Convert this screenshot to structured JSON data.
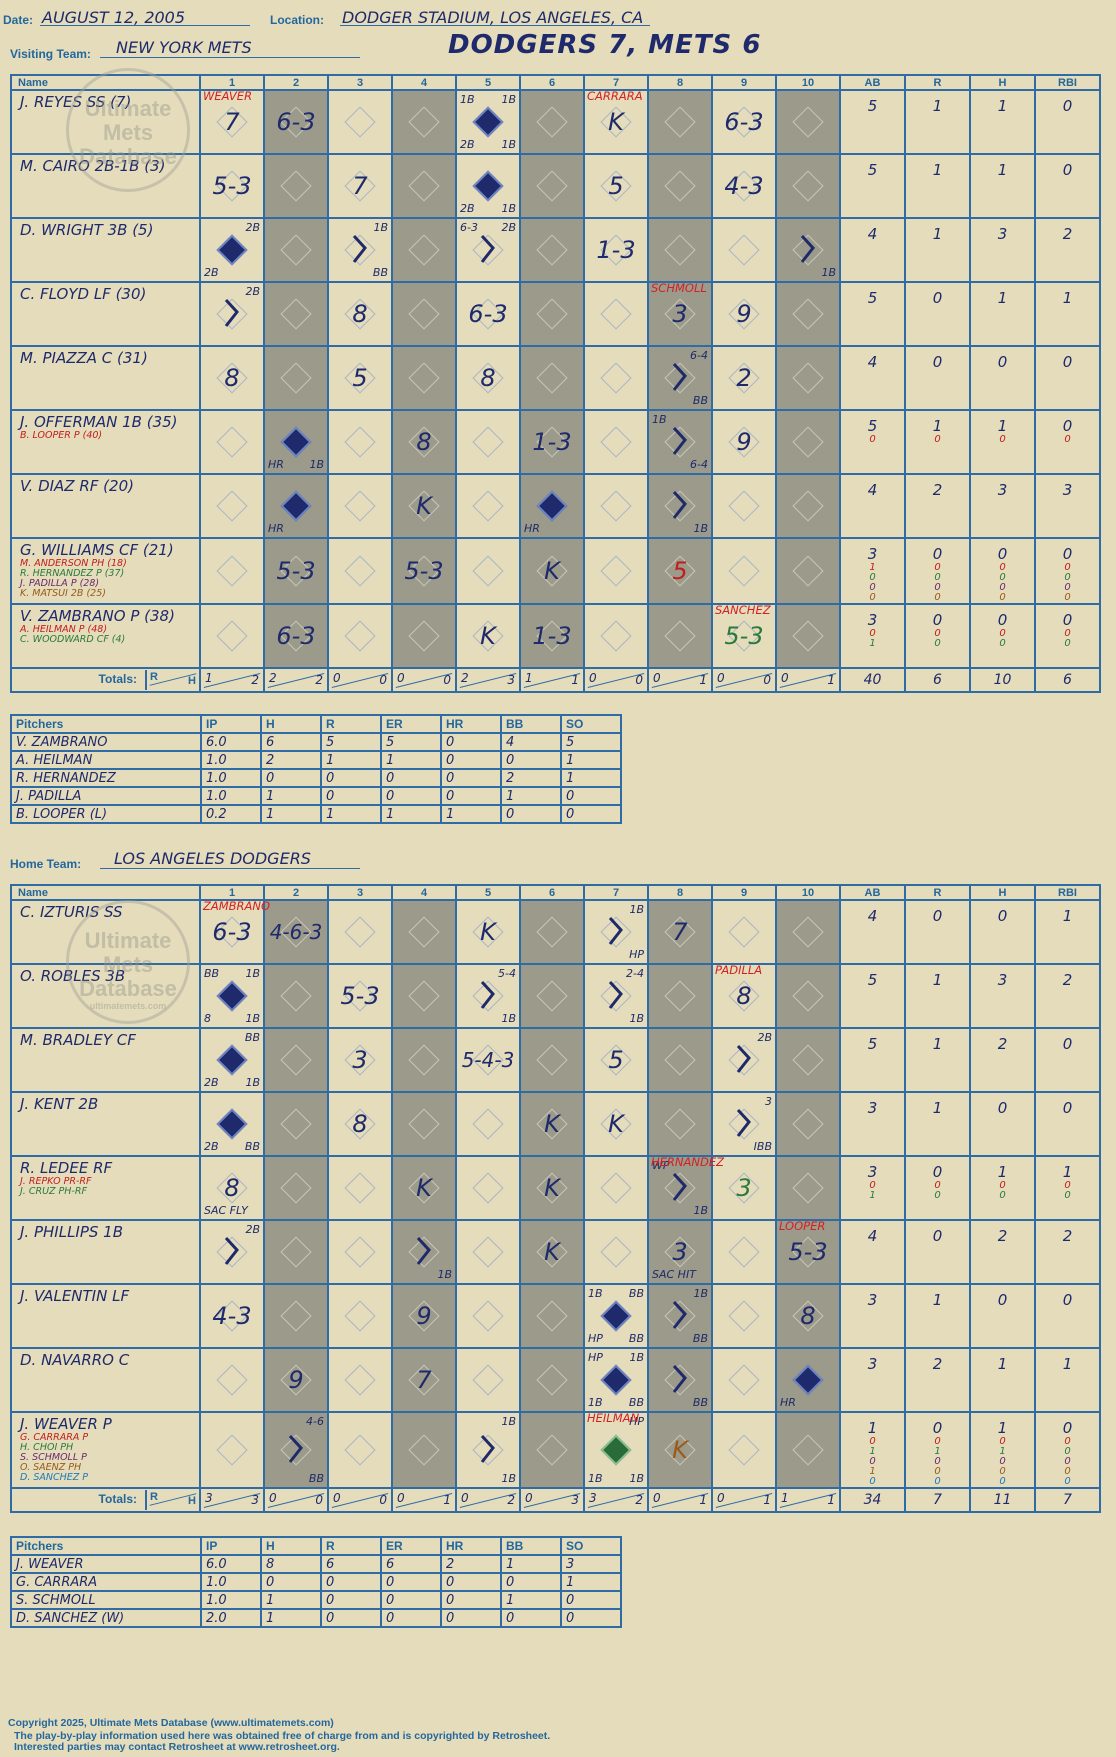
{
  "header": {
    "date_label": "Date:",
    "date": "AUGUST 12, 2005",
    "location_label": "Location:",
    "location": "DODGER STADIUM, LOS ANGELES, CA",
    "visiting_label": "Visiting Team:",
    "visiting_team": "NEW YORK METS",
    "home_label": "Home Team:",
    "home_team": "LOS ANGELES DODGERS",
    "title": "DODGERS 7, METS 6"
  },
  "watermark": {
    "line1": "Ultimate",
    "line2": "Mets",
    "line3": "Database",
    "url": "ultimatemets.com"
  },
  "columns": {
    "name": "Name",
    "innings": [
      "1",
      "2",
      "3",
      "4",
      "5",
      "6",
      "7",
      "8",
      "9",
      "10"
    ],
    "stats": [
      "AB",
      "R",
      "H",
      "RBI"
    ]
  },
  "totals_label": "Totals:",
  "rh": {
    "r": "R",
    "h": "H"
  },
  "visitors": {
    "rows": [
      {
        "name": "J. REYES SS (7)",
        "subs": [],
        "stats": [
          [
            "5"
          ],
          [
            "1"
          ],
          [
            "1"
          ],
          [
            "0"
          ]
        ],
        "cells": [
          {
            "r": "7",
            "pc": "WEAVER"
          },
          {
            "r": "6-3"
          },
          {},
          {},
          {
            "run": true,
            "tl": "1B",
            "tr": "1B",
            "bl": "2B",
            "br": "1B"
          },
          {},
          {
            "r": "K",
            "pc": "CARRARA"
          },
          {},
          {
            "r": "6-3"
          },
          {}
        ]
      },
      {
        "name": "M. CAIRO 2B-1B (3)",
        "subs": [],
        "stats": [
          [
            "5"
          ],
          [
            "1"
          ],
          [
            "1"
          ],
          [
            "0"
          ]
        ],
        "cells": [
          {
            "r": "5-3"
          },
          {},
          {
            "r": "7"
          },
          {},
          {
            "run": true,
            "bl": "2B",
            "br": "1B"
          },
          {},
          {
            "r": "5"
          },
          {},
          {
            "r": "4-3"
          },
          {}
        ]
      },
      {
        "name": "D. WRIGHT 3B (5)",
        "subs": [],
        "stats": [
          [
            "4"
          ],
          [
            "1"
          ],
          [
            "3"
          ],
          [
            "2"
          ]
        ],
        "cells": [
          {
            "run": true,
            "tr": "2B",
            "bl": "2B"
          },
          {},
          {
            "tr": "1B",
            "br": "BB",
            "bent": true
          },
          {},
          {
            "tl": "6-3",
            "tr": "2B",
            "bent": true
          },
          {},
          {
            "r": "1-3"
          },
          {},
          {},
          {
            "br": "1B",
            "bent": true
          }
        ]
      },
      {
        "name": "C. FLOYD LF (30)",
        "subs": [],
        "stats": [
          [
            "5"
          ],
          [
            "0"
          ],
          [
            "1"
          ],
          [
            "1"
          ]
        ],
        "cells": [
          {
            "tr": "2B",
            "bent": true
          },
          {},
          {
            "r": "8"
          },
          {},
          {
            "r": "6-3"
          },
          {},
          {},
          {
            "r": "3",
            "pc": "SCHMOLL"
          },
          {
            "r": "9"
          },
          {}
        ]
      },
      {
        "name": "M. PIAZZA C (31)",
        "subs": [],
        "stats": [
          [
            "4"
          ],
          [
            "0"
          ],
          [
            "0"
          ],
          [
            "0"
          ]
        ],
        "cells": [
          {
            "r": "8"
          },
          {},
          {
            "r": "5"
          },
          {},
          {
            "r": "8"
          },
          {},
          {},
          {
            "tr": "6-4",
            "br": "BB",
            "bent": true
          },
          {
            "r": "2"
          },
          {}
        ]
      },
      {
        "name": "J. OFFERMAN 1B (35)",
        "subs": [
          {
            "t": "B. LOOPER P (40)",
            "c": "#c21d1d"
          }
        ],
        "stats": [
          [
            "5",
            "0"
          ],
          [
            "1",
            "0"
          ],
          [
            "1",
            "0"
          ],
          [
            "0",
            "0"
          ]
        ],
        "cells": [
          {},
          {
            "run": true,
            "bl": "HR",
            "br": "1B"
          },
          {},
          {
            "r": "8"
          },
          {},
          {
            "r": "1-3"
          },
          {},
          {
            "tl": "1B",
            "br": "6-4",
            "bent": true
          },
          {
            "r": "9"
          },
          {}
        ]
      },
      {
        "name": "V. DIAZ RF (20)",
        "subs": [],
        "stats": [
          [
            "4"
          ],
          [
            "2"
          ],
          [
            "3"
          ],
          [
            "3"
          ]
        ],
        "cells": [
          {},
          {
            "run": true,
            "bl": "HR"
          },
          {},
          {
            "r": "K"
          },
          {},
          {
            "run": true,
            "bl": "HR"
          },
          {},
          {
            "br": "1B",
            "bent": true
          },
          {},
          {}
        ]
      },
      {
        "name": "G. WILLIAMS CF (21)",
        "subs": [
          {
            "t": "M. ANDERSON PH (18)",
            "c": "#c21d1d"
          },
          {
            "t": "R. HERNANDEZ P (37)",
            "c": "#2a7a3a"
          },
          {
            "t": "J. PADILLA P (28)",
            "c": "#6b2a6b"
          },
          {
            "t": "K. MATSUI 2B (25)",
            "c": "#9a5a1a"
          }
        ],
        "stats": [
          [
            "3",
            "1",
            "0",
            "0",
            "0"
          ],
          [
            "0",
            "0",
            "0",
            "0",
            "0"
          ],
          [
            "0",
            "0",
            "0",
            "0",
            "0"
          ],
          [
            "0",
            "0",
            "0",
            "0",
            "0"
          ]
        ],
        "cells": [
          {},
          {
            "r": "5-3"
          },
          {},
          {
            "r": "5-3"
          },
          {},
          {
            "r": "K"
          },
          {},
          {
            "r": "5",
            "c": "red"
          },
          {},
          {}
        ]
      },
      {
        "name": "V. ZAMBRANO P (38)",
        "subs": [
          {
            "t": "A. HEILMAN P (48)",
            "c": "#c21d1d"
          },
          {
            "t": "C. WOODWARD CF (4)",
            "c": "#2a7a3a"
          }
        ],
        "stats": [
          [
            "3",
            "0",
            "1"
          ],
          [
            "0",
            "0",
            "0"
          ],
          [
            "0",
            "0",
            "0"
          ],
          [
            "0",
            "0",
            "0"
          ]
        ],
        "cells": [
          {},
          {
            "r": "6-3"
          },
          {},
          {},
          {
            "r": "K"
          },
          {
            "r": "1-3"
          },
          {},
          {},
          {
            "r": "5-3",
            "c": "grn",
            "pc": "SANCHEZ"
          },
          {}
        ]
      }
    ],
    "totals": [
      [
        "1",
        "2"
      ],
      [
        "2",
        "2"
      ],
      [
        "0",
        "0"
      ],
      [
        "0",
        "0"
      ],
      [
        "2",
        "3"
      ],
      [
        "1",
        "1"
      ],
      [
        "0",
        "0"
      ],
      [
        "0",
        "1"
      ],
      [
        "0",
        "0"
      ],
      [
        "0",
        "1"
      ]
    ],
    "total_stats": [
      "40",
      "6",
      "10",
      "6"
    ]
  },
  "visitor_pitchers": {
    "headers": [
      "Pitchers",
      "IP",
      "H",
      "R",
      "ER",
      "HR",
      "BB",
      "SO"
    ],
    "rows": [
      [
        "V. ZAMBRANO",
        "6.0",
        "6",
        "5",
        "5",
        "0",
        "4",
        "5"
      ],
      [
        "A. HEILMAN",
        "1.0",
        "2",
        "1",
        "1",
        "0",
        "0",
        "1"
      ],
      [
        "R. HERNANDEZ",
        "1.0",
        "0",
        "0",
        "0",
        "0",
        "2",
        "1"
      ],
      [
        "J. PADILLA",
        "1.0",
        "1",
        "0",
        "0",
        "0",
        "1",
        "0"
      ],
      [
        "B. LOOPER (L)",
        "0.2",
        "1",
        "1",
        "1",
        "1",
        "0",
        "0"
      ]
    ]
  },
  "home": {
    "rows": [
      {
        "name": "C. IZTURIS SS",
        "subs": [],
        "stats": [
          [
            "4"
          ],
          [
            "0"
          ],
          [
            "0"
          ],
          [
            "1"
          ]
        ],
        "cells": [
          {
            "r": "6-3",
            "pc": "ZAMBRANO"
          },
          {
            "r": "4-6-3",
            "wide": true
          },
          {},
          {},
          {
            "r": "K"
          },
          {},
          {
            "tr": "1B",
            "br": "HP",
            "bent": true
          },
          {
            "r": "7"
          },
          {},
          {}
        ]
      },
      {
        "name": "O. ROBLES 3B",
        "subs": [],
        "stats": [
          [
            "5"
          ],
          [
            "1"
          ],
          [
            "3"
          ],
          [
            "2"
          ]
        ],
        "cells": [
          {
            "run": true,
            "tl": "BB",
            "tr": "1B",
            "bl": "8",
            "br": "1B"
          },
          {},
          {
            "r": "5-3"
          },
          {},
          {
            "tr": "5-4",
            "br": "1B",
            "bent": true
          },
          {},
          {
            "tr": "2-4",
            "br": "1B",
            "bent": true
          },
          {},
          {
            "r": "8",
            "pc": "PADILLA"
          },
          {}
        ]
      },
      {
        "name": "M. BRADLEY CF",
        "subs": [],
        "stats": [
          [
            "5"
          ],
          [
            "1"
          ],
          [
            "2"
          ],
          [
            "0"
          ]
        ],
        "cells": [
          {
            "run": true,
            "tr": "BB",
            "bl": "2B",
            "br": "1B"
          },
          {},
          {
            "r": "3"
          },
          {},
          {
            "r": "5-4-3",
            "wide": true
          },
          {},
          {
            "r": "5"
          },
          {},
          {
            "tr": "2B",
            "bent": true
          },
          {}
        ]
      },
      {
        "name": "J. KENT 2B",
        "subs": [],
        "stats": [
          [
            "3"
          ],
          [
            "1"
          ],
          [
            "0"
          ],
          [
            "0"
          ]
        ],
        "cells": [
          {
            "run": true,
            "bl": "2B",
            "br": "BB"
          },
          {},
          {
            "r": "8"
          },
          {},
          {},
          {
            "r": "K"
          },
          {
            "r": "K"
          },
          {},
          {
            "tr": "3",
            "br": "IBB",
            "bent": true
          },
          {}
        ]
      },
      {
        "name": "R. LEDEE RF",
        "subs": [
          {
            "t": "J. REPKO PR-RF",
            "c": "#c21d1d"
          },
          {
            "t": "J. CRUZ PH-RF",
            "c": "#2a7a3a"
          }
        ],
        "stats": [
          [
            "3",
            "0",
            "1"
          ],
          [
            "0",
            "0",
            "0"
          ],
          [
            "1",
            "0",
            "0"
          ],
          [
            "1",
            "0",
            "0"
          ]
        ],
        "cells": [
          {
            "r": "8",
            "bl": "SAC FLY"
          },
          {},
          {},
          {
            "r": "K"
          },
          {},
          {
            "r": "K"
          },
          {},
          {
            "tl": "WP",
            "br": "1B",
            "bent": true,
            "pc": "HERNANDEZ"
          },
          {
            "r": "3",
            "c": "grn"
          },
          {}
        ]
      },
      {
        "name": "J. PHILLIPS 1B",
        "subs": [],
        "stats": [
          [
            "4"
          ],
          [
            "0"
          ],
          [
            "2"
          ],
          [
            "2"
          ]
        ],
        "cells": [
          {
            "tr": "2B",
            "bent": true
          },
          {},
          {},
          {
            "br": "1B",
            "bent": true
          },
          {},
          {
            "r": "K"
          },
          {},
          {
            "r": "3",
            "bl": "SAC HIT"
          },
          {},
          {
            "r": "5-3",
            "pc": "LOOPER"
          }
        ]
      },
      {
        "name": "J. VALENTIN LF",
        "subs": [],
        "stats": [
          [
            "3"
          ],
          [
            "1"
          ],
          [
            "0"
          ],
          [
            "0"
          ]
        ],
        "cells": [
          {
            "r": "4-3"
          },
          {},
          {},
          {
            "r": "9"
          },
          {},
          {},
          {
            "run": true,
            "tl": "1B",
            "tr": "BB",
            "bl": "HP",
            "br": "BB"
          },
          {
            "tr": "1B",
            "br": "BB",
            "bent": true
          },
          {},
          {
            "r": "8"
          }
        ]
      },
      {
        "name": "D. NAVARRO C",
        "subs": [],
        "stats": [
          [
            "3"
          ],
          [
            "2"
          ],
          [
            "1"
          ],
          [
            "1"
          ]
        ],
        "cells": [
          {},
          {
            "r": "9"
          },
          {},
          {
            "r": "7"
          },
          {},
          {},
          {
            "run": true,
            "tl": "HP",
            "tr": "1B",
            "bl": "1B",
            "br": "BB"
          },
          {
            "br": "BB",
            "bent": true
          },
          {},
          {
            "run": true,
            "bl": "HR"
          }
        ]
      },
      {
        "name": "J. WEAVER P",
        "subs": [
          {
            "t": "G. CARRARA P",
            "c": "#c21d1d"
          },
          {
            "t": "H. CHOI PH",
            "c": "#2a7a3a"
          },
          {
            "t": "S. SCHMOLL P",
            "c": "#6b2a6b"
          },
          {
            "t": "O. SAENZ PH",
            "c": "#9a5a1a"
          },
          {
            "t": "D. SANCHEZ P",
            "c": "#1e7ab8"
          }
        ],
        "stats": [
          [
            "1",
            "0",
            "1",
            "0",
            "1",
            "0"
          ],
          [
            "0",
            "0",
            "1",
            "0",
            "0",
            "0"
          ],
          [
            "1",
            "0",
            "1",
            "0",
            "0",
            "0"
          ],
          [
            "0",
            "0",
            "0",
            "0",
            "0",
            "0"
          ]
        ],
        "cells": [
          {},
          {
            "tr": "4-6",
            "br": "BB",
            "bent": true
          },
          {},
          {},
          {
            "tr": "1B",
            "br": "1B",
            "bent": true
          },
          {},
          {
            "rung": true,
            "tr": "HP",
            "bl": "1B",
            "br": "1B",
            "pc": "HEILMAN"
          },
          {
            "r": "K",
            "c": "brn"
          },
          {},
          {}
        ]
      }
    ],
    "totals": [
      [
        "3",
        "3"
      ],
      [
        "0",
        "0"
      ],
      [
        "0",
        "0"
      ],
      [
        "0",
        "1"
      ],
      [
        "0",
        "2"
      ],
      [
        "0",
        "3"
      ],
      [
        "3",
        "2"
      ],
      [
        "0",
        "1"
      ],
      [
        "0",
        "1"
      ],
      [
        "1",
        "1"
      ]
    ],
    "total_stats": [
      "34",
      "7",
      "11",
      "7"
    ]
  },
  "home_pitchers": {
    "headers": [
      "Pitchers",
      "IP",
      "H",
      "R",
      "ER",
      "HR",
      "BB",
      "SO"
    ],
    "rows": [
      [
        "J. WEAVER",
        "6.0",
        "8",
        "6",
        "6",
        "2",
        "1",
        "3"
      ],
      [
        "G. CARRARA",
        "1.0",
        "0",
        "0",
        "0",
        "0",
        "0",
        "1"
      ],
      [
        "S. SCHMOLL",
        "1.0",
        "1",
        "0",
        "0",
        "0",
        "1",
        "0"
      ],
      [
        "D. SANCHEZ (W)",
        "2.0",
        "1",
        "0",
        "0",
        "0",
        "0",
        "0"
      ]
    ]
  },
  "footer": {
    "line1": "Copyright 2025, Ultimate Mets Database (www.ultimatemets.com)",
    "line2": "The play-by-play information used here was obtained free of charge from and is copyrighted by Retrosheet.",
    "line3": "Interested parties may contact Retrosheet at www.retrosheet.org."
  }
}
